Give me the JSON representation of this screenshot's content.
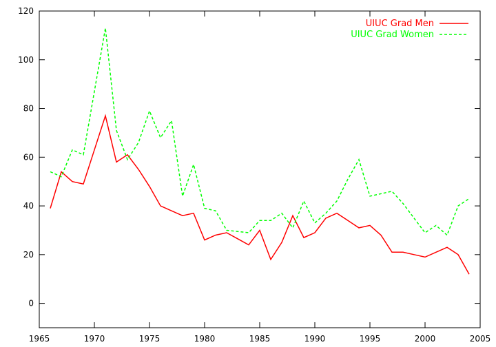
{
  "chart_data": {
    "type": "line",
    "title": "",
    "xlabel": "",
    "ylabel": "",
    "xlim": [
      1965,
      2005
    ],
    "ylim": [
      -10,
      120
    ],
    "x_ticks": [
      "1965",
      "1970",
      "1975",
      "1980",
      "1985",
      "1990",
      "1995",
      "2000",
      "2005"
    ],
    "y_ticks": [
      "0",
      "20",
      "40",
      "60",
      "80",
      "100",
      "120"
    ],
    "grid": false,
    "legend_position": "top-right",
    "series": [
      {
        "name": "UIUC Grad Men",
        "color": "#ff0000",
        "dash": "solid",
        "x": [
          1966,
          1967,
          1968,
          1969,
          1970,
          1971,
          1972,
          1973,
          1974,
          1975,
          1976,
          1977,
          1978,
          1979,
          1980,
          1981,
          1982,
          1983,
          1984,
          1985,
          1986,
          1987,
          1988,
          1989,
          1990,
          1991,
          1992,
          1993,
          1994,
          1995,
          1996,
          1997,
          1998,
          1999,
          2000,
          2001,
          2002,
          2003,
          2004
        ],
        "values": [
          39,
          54,
          50,
          49,
          63,
          77,
          58,
          61,
          55,
          48,
          40,
          38,
          36,
          37,
          26,
          28,
          29,
          26.5,
          24,
          30,
          18,
          25,
          36,
          27,
          29,
          35,
          37,
          34,
          31,
          32,
          28,
          21,
          21,
          20,
          19,
          21,
          23,
          20,
          12
        ]
      },
      {
        "name": "UIUC Grad Women",
        "color": "#00ff00",
        "dash": "dashed",
        "x": [
          1966,
          1967,
          1968,
          1969,
          1970,
          1971,
          1972,
          1973,
          1974,
          1975,
          1976,
          1977,
          1978,
          1979,
          1980,
          1981,
          1982,
          1983,
          1984,
          1985,
          1986,
          1987,
          1988,
          1989,
          1990,
          1991,
          1992,
          1993,
          1994,
          1995,
          1996,
          1997,
          1998,
          1999,
          2000,
          2001,
          2002,
          2003,
          2004
        ],
        "values": [
          54,
          52,
          63,
          61,
          87,
          113,
          71,
          59,
          66,
          79,
          68,
          75,
          44,
          57,
          39,
          38,
          30,
          29.5,
          29,
          34,
          34,
          37,
          31,
          42,
          33,
          37,
          42,
          51,
          59,
          44,
          45,
          46,
          41,
          35,
          29,
          32,
          28,
          40,
          43
        ]
      }
    ]
  }
}
